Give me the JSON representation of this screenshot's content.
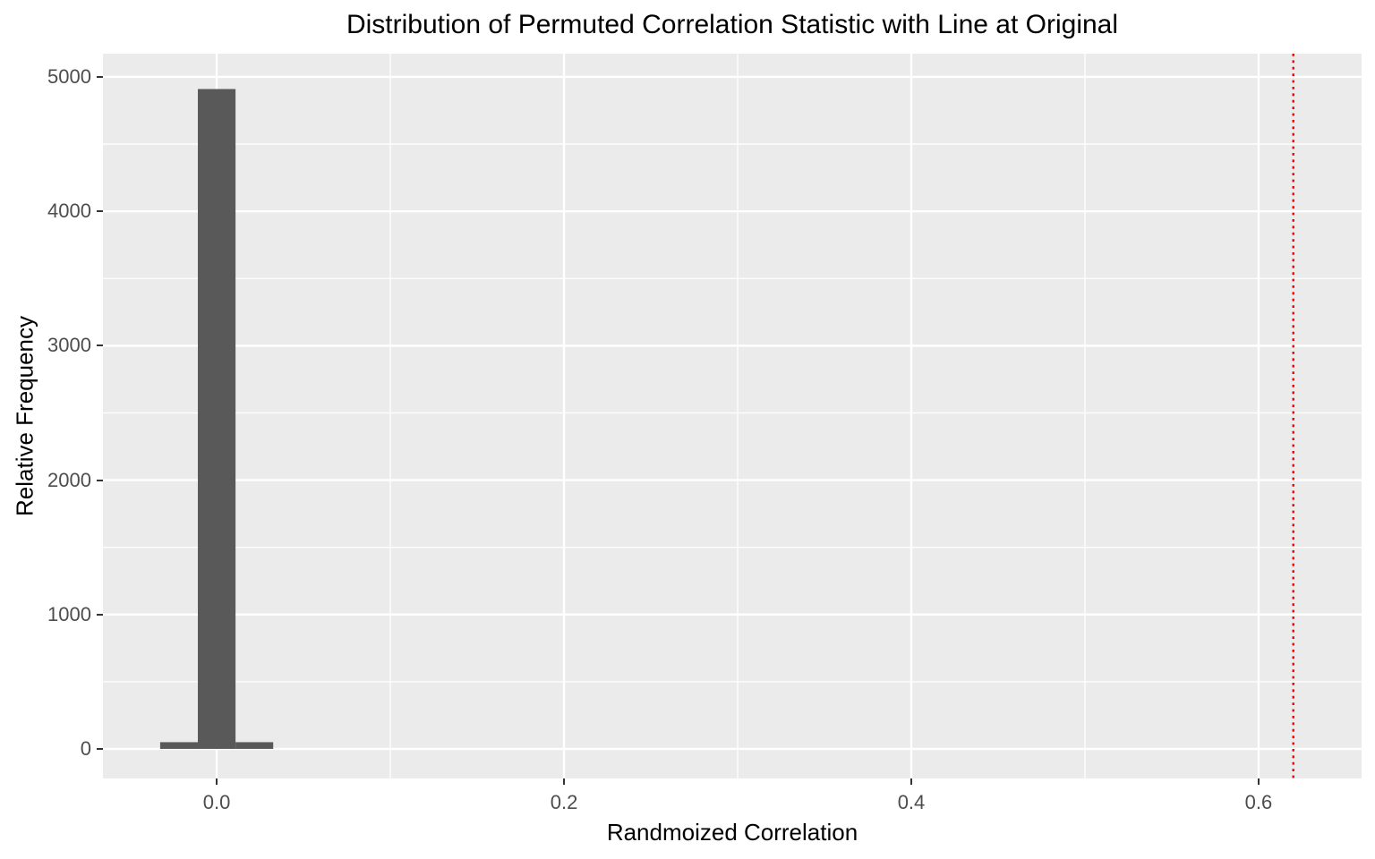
{
  "title": "Distribution of Permuted Correlation Statistic with Line at Original",
  "chart_data": {
    "type": "bar",
    "subtype": "histogram",
    "title": "Distribution of Permuted Correlation Statistic with Line at Original",
    "xlabel": "Randmoized Correlation",
    "ylabel": "Relative Frequency",
    "xlim": [
      -0.0655,
      0.6593
    ],
    "ylim": [
      -220,
      5173
    ],
    "x_major_ticks": [
      0.0,
      0.2,
      0.4,
      0.6
    ],
    "x_tick_labels": [
      "0.0",
      "0.2",
      "0.4",
      "0.6"
    ],
    "x_minor_ticks": [
      0.1,
      0.3,
      0.5
    ],
    "y_major_ticks": [
      0,
      1000,
      2000,
      3000,
      4000,
      5000
    ],
    "y_tick_labels": [
      "0",
      "1000",
      "2000",
      "3000",
      "4000",
      "5000"
    ],
    "y_minor_ticks": [
      500,
      1500,
      2500,
      3500,
      4500
    ],
    "bins": {
      "binwidth": 0.0217,
      "centers": [
        -0.0217,
        0.0,
        0.0217
      ],
      "values": [
        50,
        4910,
        50
      ]
    },
    "vline": {
      "x": 0.62,
      "color": "#FF0000",
      "linetype": "dotted"
    },
    "grid": "on",
    "legend": "none",
    "colors": {
      "bar_fill": "#595959",
      "panel_background": "#EBEBEB",
      "gridline": "#FFFFFF",
      "tick_label": "#4D4D4D",
      "tick_mark": "#333333",
      "axis_title": "#000000",
      "title": "#000000",
      "background": "#FFFFFF"
    }
  }
}
